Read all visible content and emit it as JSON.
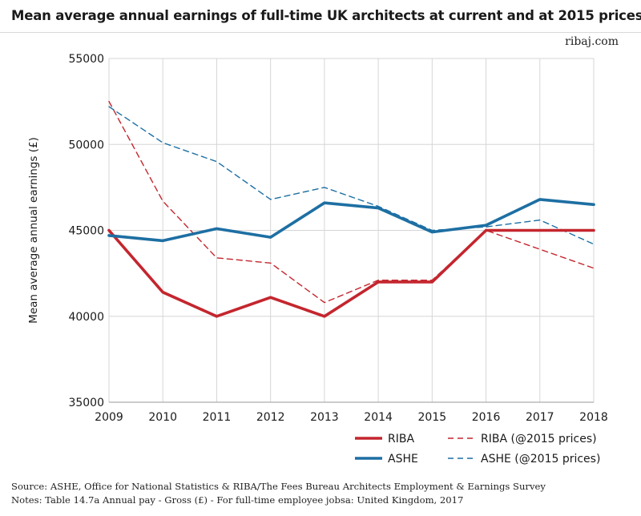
{
  "title": "Mean average annual earnings of full-time UK architects at current and at 2015 prices",
  "brand": "ribaj.com",
  "colors": {
    "riba": "#c4262e",
    "ashe": "#1d6fa3",
    "grid": "#d6d6d6",
    "axis": "#999999"
  },
  "chart_data": {
    "type": "line",
    "x": [
      2009,
      2010,
      2011,
      2012,
      2013,
      2014,
      2015,
      2016,
      2017,
      2018
    ],
    "xlabel": "",
    "ylabel": "Mean average annual earnings (£)",
    "ylim": [
      35000,
      55000
    ],
    "yticks": [
      35000,
      40000,
      45000,
      50000,
      55000
    ],
    "grid": true,
    "legend_position": "bottom",
    "series": [
      {
        "name": "RIBA",
        "style": "solid",
        "color": "#c4262e",
        "values": [
          45000,
          41400,
          40000,
          41100,
          40000,
          42000,
          42000,
          45000,
          45000,
          45000
        ]
      },
      {
        "name": "ASHE",
        "style": "solid",
        "color": "#1d6fa3",
        "values": [
          44700,
          44400,
          45100,
          44600,
          46600,
          46300,
          44900,
          45300,
          46800,
          46500
        ]
      },
      {
        "name": "RIBA (@2015 prices)",
        "style": "dashed",
        "color": "#c4262e",
        "values": [
          52500,
          46700,
          43400,
          43100,
          40800,
          42100,
          42100,
          45000,
          43900,
          42800
        ]
      },
      {
        "name": "ASHE (@2015 prices)",
        "style": "dashed",
        "color": "#1d6fa3",
        "values": [
          52200,
          50100,
          49000,
          46800,
          47500,
          46400,
          45000,
          45200,
          45600,
          44200
        ]
      }
    ]
  },
  "notes": {
    "source": "Source: ASHE, Office for National Statistics &  RIBA/The Fees Bureau Architects Employment & Earnings Survey",
    "notes": "Notes: Table 14.7a   Annual pay - Gross (£) - For full-time employee jobsa: United Kingdom, 2017"
  }
}
